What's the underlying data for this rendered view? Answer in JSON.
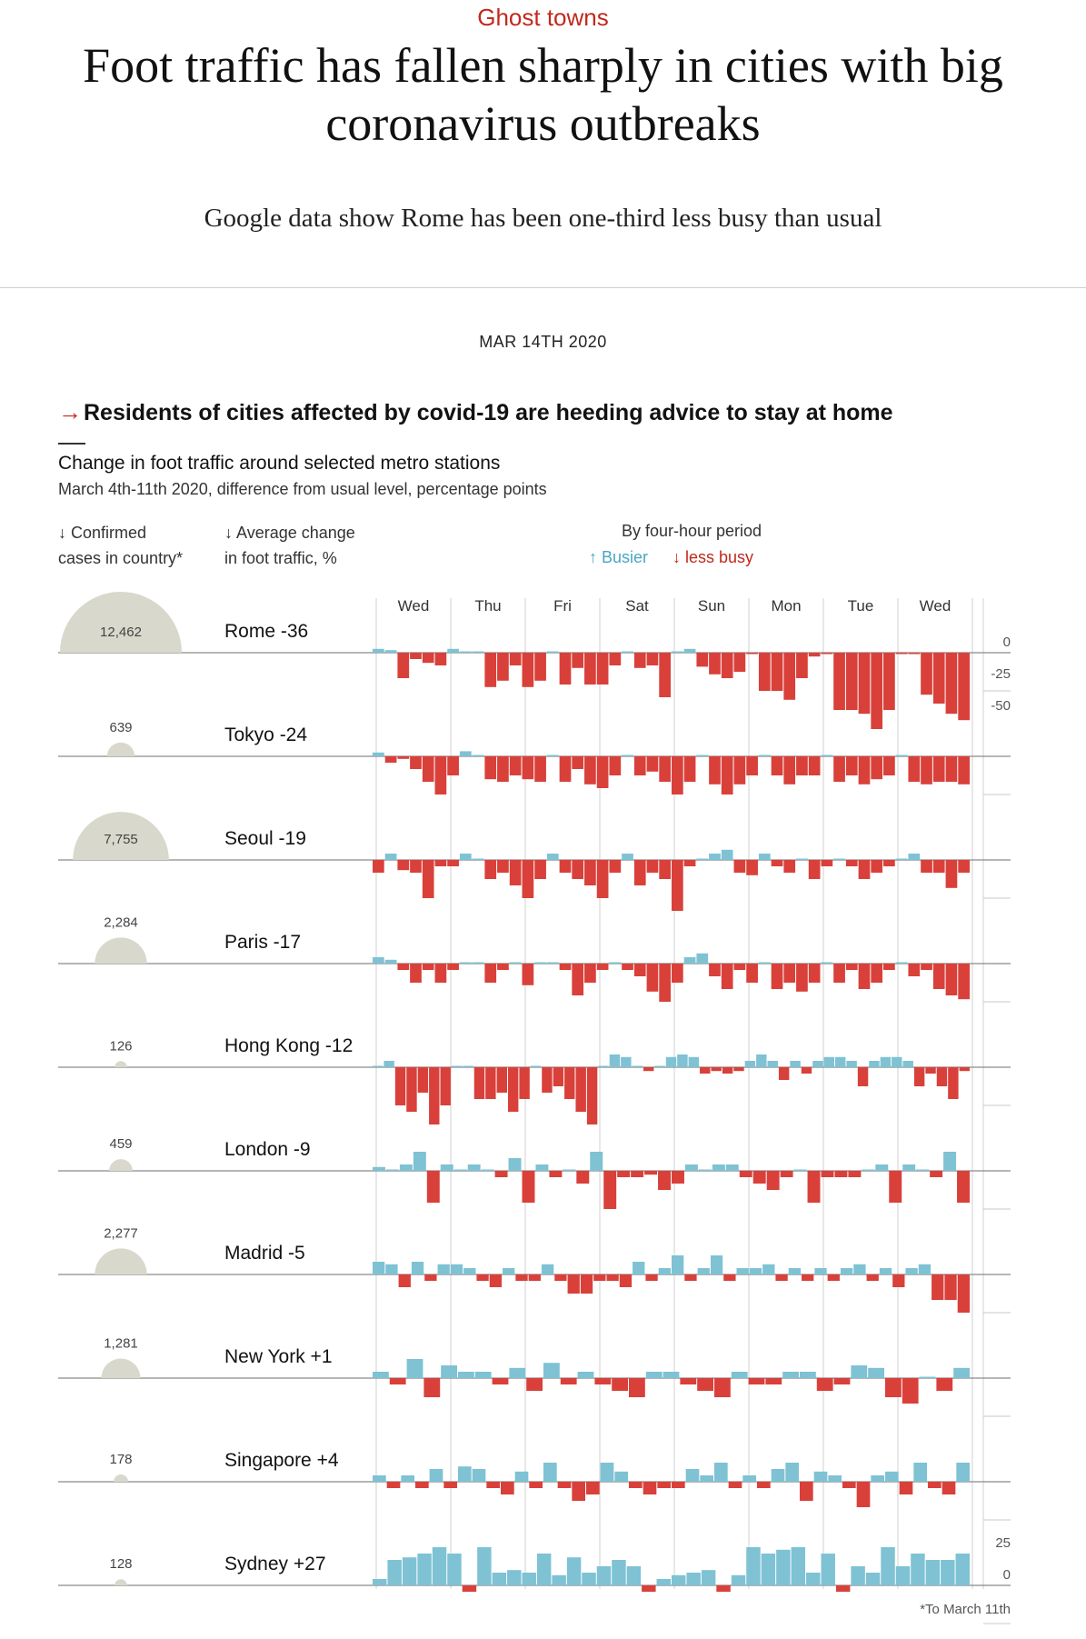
{
  "article": {
    "kicker": "Ghost towns",
    "headline": "Foot traffic has fallen sharply in cities with big coronavirus outbreaks",
    "subhead": "Google data show Rome has been one-third less busy than usual",
    "date": "MAR 14TH 2020"
  },
  "colors": {
    "up": "#7ec2d4",
    "down": "#d9403a",
    "bubble": "#d8d8cc",
    "accent": "#c2281c",
    "busier_text": "#4aa6c2"
  },
  "chart_data": {
    "type": "bar",
    "headline": "Residents of cities affected by covid-19 are heeding advice to stay at home",
    "title": "Change in foot traffic around selected metro stations",
    "subtitle": "March 4th-11th 2020, difference from usual level, percentage points",
    "col_cases": "↓ Confirmed cases in country*",
    "col_cases_line1": "↓ Confirmed",
    "col_cases_line2": "cases in country*",
    "col_avg_line1": "↓ Average change",
    "col_avg_line2": "in foot traffic, %",
    "period_label": "By four-hour period",
    "busier": "↑ Busier",
    "less_busy": "↓ less busy",
    "days": [
      "Wed",
      "Thu",
      "Fri",
      "Sat",
      "Sun",
      "Mon",
      "Tue",
      "Wed"
    ],
    "footnote": "*To March 11th",
    "scale_top": [
      {
        "label": "0",
        "value": 0
      },
      {
        "label": "-25",
        "value": -25
      },
      {
        "label": "-50",
        "value": -50
      }
    ],
    "scale_bottom": [
      {
        "label": "25",
        "value": 25
      },
      {
        "label": "0",
        "value": 0
      }
    ],
    "cities": [
      {
        "name": "Rome -36",
        "cases": 12462,
        "cases_label": "12,462",
        "values": [
          3,
          2,
          -20,
          -5,
          -8,
          -10,
          3,
          1,
          0,
          -27,
          -22,
          -10,
          -27,
          -22,
          1,
          -25,
          -12,
          -25,
          -25,
          -10,
          1,
          -12,
          -10,
          -35,
          0,
          3,
          -11,
          -17,
          -20,
          -15,
          -1,
          -30,
          -30,
          -37,
          -20,
          -3,
          -1,
          -45,
          -45,
          -48,
          -60,
          -45,
          -1,
          -1,
          -33,
          -40,
          -48,
          -53
        ]
      },
      {
        "name": "Tokyo -24",
        "cases": 639,
        "cases_label": "639",
        "values": [
          3,
          -5,
          -2,
          -10,
          -20,
          -30,
          -15,
          4,
          1,
          -18,
          -20,
          -15,
          -18,
          -20,
          1,
          -20,
          -10,
          -22,
          -25,
          -15,
          1,
          -15,
          -12,
          -20,
          -30,
          -20,
          1,
          -22,
          -30,
          -22,
          -15,
          1,
          -15,
          -22,
          -15,
          -15,
          1,
          -20,
          -15,
          -22,
          -18,
          -15,
          1,
          -20,
          -22,
          -20,
          -20,
          -22
        ]
      },
      {
        "name": "Seoul -19",
        "cases": 7755,
        "cases_label": "7,755",
        "values": [
          -10,
          5,
          -8,
          -10,
          -30,
          -5,
          -5,
          5,
          1,
          -15,
          -10,
          -20,
          -30,
          -15,
          5,
          -10,
          -15,
          -20,
          -30,
          -10,
          5,
          -20,
          -10,
          -15,
          -40,
          -5,
          1,
          5,
          8,
          -10,
          -12,
          5,
          -5,
          -10,
          1,
          -15,
          -5,
          1,
          -5,
          -15,
          -10,
          -5,
          1,
          5,
          -10,
          -10,
          -22,
          -10
        ]
      },
      {
        "name": "Paris -17",
        "cases": 2284,
        "cases_label": "2,284",
        "values": [
          5,
          3,
          -5,
          -15,
          -5,
          -15,
          -5,
          1,
          1,
          -15,
          -5,
          1,
          -17,
          1,
          1,
          -5,
          -25,
          -15,
          -5,
          1,
          -5,
          -10,
          -22,
          -30,
          -15,
          5,
          8,
          -10,
          -20,
          -5,
          -15,
          1,
          -20,
          -15,
          -22,
          -15,
          1,
          -15,
          -5,
          -20,
          -15,
          -5,
          1,
          -10,
          -5,
          -20,
          -25,
          -28
        ]
      },
      {
        "name": "Hong Kong -12",
        "cases": 126,
        "cases_label": "126",
        "values": [
          1,
          5,
          -30,
          -35,
          -20,
          -45,
          -30,
          1,
          1,
          -25,
          -25,
          -20,
          -35,
          -25,
          1,
          -20,
          -15,
          -25,
          -35,
          -45,
          1,
          10,
          8,
          1,
          -3,
          1,
          8,
          10,
          8,
          -5,
          -3,
          -5,
          -3,
          5,
          10,
          5,
          -10,
          5,
          -5,
          5,
          8,
          8,
          5,
          -15,
          5,
          8,
          8,
          5,
          -15,
          -5,
          -15,
          -25,
          -3
        ]
      },
      {
        "name": "London -9",
        "cases": 459,
        "cases_label": "459",
        "values": [
          3,
          1,
          5,
          15,
          -25,
          5,
          1,
          5,
          1,
          -5,
          10,
          -25,
          5,
          -5,
          1,
          -10,
          15,
          -30,
          -5,
          -5,
          -3,
          -15,
          -10,
          5,
          1,
          5,
          5,
          -5,
          -10,
          -15,
          -5,
          1,
          -25,
          -5,
          -5,
          -5,
          1,
          5,
          -25,
          5,
          1,
          -5,
          15,
          -25
        ]
      },
      {
        "name": "Madrid -5",
        "cases": 2277,
        "cases_label": "2,277",
        "values": [
          10,
          8,
          -10,
          10,
          -5,
          8,
          8,
          5,
          -5,
          -10,
          5,
          -5,
          -5,
          8,
          -5,
          -15,
          -15,
          -5,
          -5,
          -10,
          10,
          -5,
          5,
          15,
          -5,
          5,
          15,
          -5,
          5,
          5,
          8,
          -5,
          5,
          -5,
          5,
          -5,
          5,
          8,
          -5,
          5,
          -10,
          5,
          8,
          -20,
          -20,
          -30
        ]
      },
      {
        "name": "New York +1",
        "cases": 1281,
        "cases_label": "1,281",
        "values": [
          5,
          -5,
          15,
          -15,
          10,
          5,
          5,
          -5,
          8,
          -10,
          12,
          -5,
          5,
          -5,
          -10,
          -15,
          5,
          5,
          -5,
          -10,
          -15,
          5,
          -5,
          -5,
          5,
          5,
          -10,
          -5,
          10,
          8,
          -15,
          -20,
          1,
          -10,
          8
        ]
      },
      {
        "name": "Singapore +4",
        "cases": 178,
        "cases_label": "178",
        "values": [
          5,
          -5,
          5,
          -5,
          10,
          -5,
          12,
          10,
          -5,
          -10,
          8,
          -5,
          15,
          -5,
          -15,
          -10,
          15,
          8,
          -5,
          -10,
          -5,
          -5,
          10,
          5,
          15,
          -5,
          5,
          -5,
          10,
          15,
          -15,
          8,
          5,
          -5,
          -20,
          5,
          8,
          -10,
          15,
          -5,
          -10,
          15
        ]
      },
      {
        "name": "Sydney +27",
        "cases": 128,
        "cases_label": "128",
        "values": [
          5,
          20,
          22,
          25,
          30,
          25,
          -5,
          30,
          10,
          12,
          10,
          25,
          8,
          22,
          10,
          15,
          20,
          15,
          -5,
          5,
          8,
          10,
          12,
          -5,
          8,
          30,
          25,
          28,
          30,
          10,
          25,
          -5,
          15,
          10,
          30,
          15,
          25,
          20,
          20,
          25
        ]
      }
    ]
  }
}
